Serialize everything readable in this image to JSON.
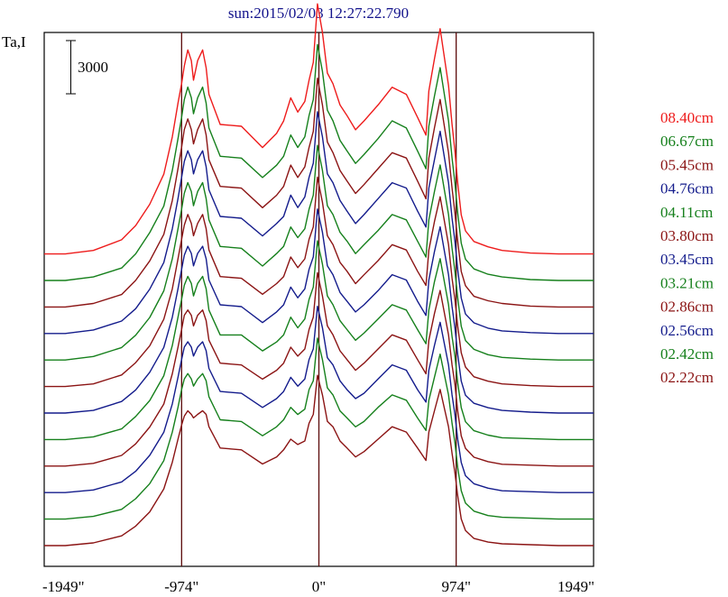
{
  "chart_data": {
    "type": "line",
    "title": "sun:2015/02/03 12:27:22.790",
    "ylabel": "Ta,I",
    "scale_bar_label": "3000",
    "x_ticks": [
      "-1949\"",
      "-974\"",
      "0\"",
      "974\"",
      "1949\""
    ],
    "xlim": [
      -1949,
      1949
    ],
    "vertical_lines": [
      -974,
      0,
      974
    ],
    "grid": false,
    "legend_placement": "right",
    "series_offset": 3000,
    "x": [
      -1949,
      -1800,
      -1600,
      -1400,
      -1300,
      -1200,
      -1100,
      -1040,
      -1000,
      -974,
      -955,
      -930,
      -905,
      -890,
      -860,
      -825,
      -800,
      -780,
      -700,
      -550,
      -400,
      -300,
      -250,
      -200,
      -150,
      -100,
      -70,
      -40,
      -10,
      25,
      60,
      100,
      150,
      200,
      260,
      320,
      420,
      520,
      620,
      700,
      760,
      780,
      820,
      860,
      920,
      945,
      965,
      985,
      1010,
      1040,
      1100,
      1200,
      1300,
      1500,
      1700,
      1949
    ],
    "series": [
      {
        "name": "08.40cm",
        "color": "#ee1c1c",
        "values": [
          0,
          0,
          200,
          800,
          1600,
          2800,
          4500,
          6600,
          8500,
          9600,
          10600,
          11500,
          10900,
          9800,
          10900,
          11500,
          10500,
          9000,
          7300,
          7200,
          6000,
          6800,
          7500,
          8800,
          8000,
          8600,
          9800,
          10800,
          14100,
          12500,
          10200,
          9600,
          8400,
          7800,
          7000,
          7500,
          8400,
          9400,
          9000,
          7700,
          6700,
          9200,
          11000,
          12700,
          9500,
          7300,
          5800,
          4000,
          2200,
          1300,
          700,
          400,
          200,
          50,
          0,
          0
        ]
      },
      {
        "name": "06.67cm",
        "color": "#16801c",
        "values": [
          0,
          0,
          200,
          700,
          1500,
          2700,
          4200,
          6200,
          8000,
          9200,
          10200,
          10900,
          10300,
          9400,
          10300,
          10900,
          10000,
          8600,
          7000,
          6900,
          5800,
          6500,
          7000,
          8200,
          7500,
          8100,
          9300,
          10200,
          13300,
          11800,
          9600,
          9000,
          7900,
          7300,
          6600,
          7100,
          8000,
          9000,
          8600,
          7300,
          6300,
          8700,
          10400,
          12000,
          9000,
          6900,
          5500,
          3800,
          2100,
          1200,
          650,
          350,
          200,
          50,
          0,
          0
        ]
      },
      {
        "name": "05.45cm",
        "color": "#8b1414",
        "values": [
          0,
          0,
          200,
          700,
          1500,
          2600,
          4100,
          6000,
          7800,
          9000,
          10000,
          10600,
          10000,
          9200,
          10000,
          10600,
          9700,
          8300,
          6800,
          6700,
          5600,
          6300,
          6800,
          8000,
          7300,
          7900,
          9000,
          9900,
          12900,
          11400,
          9300,
          8700,
          7700,
          7100,
          6400,
          6900,
          7800,
          8700,
          8400,
          7100,
          6100,
          8400,
          10100,
          11700,
          8700,
          6700,
          5300,
          3700,
          2000,
          1200,
          600,
          350,
          200,
          50,
          0,
          0
        ]
      },
      {
        "name": "04.76cm",
        "color": "#141c8c",
        "values": [
          0,
          0,
          200,
          700,
          1400,
          2500,
          4000,
          5900,
          7600,
          8800,
          9700,
          10300,
          9800,
          9000,
          9800,
          10300,
          9400,
          8100,
          6600,
          6500,
          5500,
          6200,
          6600,
          7800,
          7100,
          7700,
          8800,
          9600,
          12500,
          11100,
          9000,
          8500,
          7500,
          6900,
          6200,
          6700,
          7600,
          8500,
          8200,
          6900,
          6000,
          8200,
          9800,
          11400,
          8500,
          6500,
          5200,
          3600,
          2000,
          1100,
          600,
          300,
          150,
          50,
          0,
          0
        ]
      },
      {
        "name": "04.11cm",
        "color": "#16801c",
        "values": [
          0,
          0,
          200,
          700,
          1400,
          2400,
          3900,
          5700,
          7400,
          8500,
          9400,
          10000,
          9500,
          8700,
          9500,
          10000,
          9100,
          7900,
          6400,
          6300,
          5300,
          6000,
          6400,
          7500,
          6900,
          7400,
          8500,
          9300,
          12100,
          10700,
          8700,
          8200,
          7200,
          6700,
          6000,
          6500,
          7300,
          8200,
          7900,
          6700,
          5800,
          7900,
          9500,
          11000,
          8200,
          6300,
          5000,
          3500,
          1900,
          1100,
          600,
          300,
          150,
          50,
          0,
          0
        ]
      },
      {
        "name": "03.80cm",
        "color": "#8b1414",
        "values": [
          0,
          0,
          150,
          650,
          1350,
          2300,
          3800,
          5500,
          7200,
          8300,
          9100,
          9700,
          9200,
          8500,
          9200,
          9700,
          8900,
          7700,
          6200,
          6100,
          5200,
          5800,
          6200,
          7300,
          6700,
          7200,
          8300,
          9000,
          11800,
          10400,
          8500,
          8000,
          7000,
          6500,
          5800,
          6300,
          7100,
          8000,
          7700,
          6500,
          5700,
          7700,
          9300,
          10700,
          8000,
          6100,
          4900,
          3400,
          1900,
          1100,
          550,
          300,
          150,
          50,
          0,
          0
        ]
      },
      {
        "name": "03.45cm",
        "color": "#141c8c",
        "values": [
          0,
          0,
          150,
          650,
          1300,
          2300,
          3700,
          5400,
          7000,
          8100,
          8900,
          9400,
          9000,
          8300,
          9000,
          9400,
          8700,
          7500,
          6100,
          6000,
          5100,
          5700,
          6100,
          7100,
          6500,
          7000,
          8100,
          8800,
          11500,
          10200,
          8300,
          7800,
          6800,
          6300,
          5700,
          6100,
          6900,
          7800,
          7500,
          6300,
          5500,
          7500,
          9100,
          10500,
          7800,
          6000,
          4800,
          3300,
          1800,
          1000,
          550,
          300,
          150,
          50,
          0,
          0
        ]
      },
      {
        "name": "03.21cm",
        "color": "#16801c",
        "values": [
          0,
          0,
          150,
          600,
          1300,
          2200,
          3600,
          5300,
          6900,
          7900,
          8700,
          9200,
          8800,
          8100,
          8800,
          9200,
          8500,
          7300,
          5900,
          5900,
          5000,
          5500,
          5900,
          6900,
          6300,
          6800,
          7900,
          8600,
          11200,
          9900,
          8100,
          7600,
          6700,
          6200,
          5600,
          6000,
          6800,
          7600,
          7300,
          6200,
          5400,
          7300,
          8900,
          10200,
          7600,
          5800,
          4700,
          3200,
          1800,
          1000,
          500,
          250,
          100,
          50,
          0,
          0
        ]
      },
      {
        "name": "02.86cm",
        "color": "#8b1414",
        "values": [
          0,
          0,
          150,
          600,
          1250,
          2200,
          3500,
          5200,
          6700,
          7700,
          8500,
          8800,
          8500,
          7900,
          8500,
          8800,
          8200,
          7100,
          5800,
          5700,
          4900,
          5400,
          5800,
          6700,
          6200,
          6600,
          7700,
          8400,
          10900,
          9600,
          7900,
          7400,
          6500,
          6000,
          5400,
          5800,
          6600,
          7400,
          7100,
          6000,
          5200,
          7100,
          8600,
          9900,
          7400,
          5700,
          4600,
          3100,
          1700,
          1000,
          500,
          250,
          100,
          50,
          0,
          0
        ]
      },
      {
        "name": "02.56cm",
        "color": "#141c8c",
        "values": [
          0,
          0,
          150,
          600,
          1200,
          2100,
          3400,
          5000,
          6500,
          7500,
          8200,
          8500,
          8200,
          7700,
          8200,
          8500,
          8000,
          7000,
          5700,
          5600,
          4800,
          5300,
          5700,
          6500,
          6000,
          6400,
          7500,
          8100,
          10500,
          9300,
          7600,
          7200,
          6300,
          5800,
          5300,
          5600,
          6400,
          7200,
          6900,
          5800,
          5100,
          6900,
          8300,
          9600,
          7200,
          5500,
          4400,
          3000,
          1700,
          950,
          500,
          250,
          100,
          50,
          0,
          0
        ]
      },
      {
        "name": "02.42cm",
        "color": "#16801c",
        "values": [
          0,
          0,
          150,
          550,
          1150,
          2000,
          3300,
          4900,
          6300,
          7300,
          7900,
          8200,
          7900,
          7500,
          7900,
          8200,
          7800,
          6900,
          5600,
          5500,
          4700,
          5200,
          5600,
          6300,
          5900,
          6200,
          7300,
          7800,
          10200,
          9000,
          7400,
          7000,
          6100,
          5700,
          5200,
          5500,
          6300,
          7000,
          6700,
          5700,
          5000,
          6700,
          8000,
          9300,
          7000,
          5400,
          4300,
          2900,
          1600,
          900,
          450,
          200,
          100,
          50,
          0,
          0
        ]
      },
      {
        "name": "02.22cm",
        "color": "#8b1414",
        "values": [
          0,
          0,
          150,
          550,
          1100,
          1900,
          3200,
          4700,
          6000,
          6800,
          7300,
          7600,
          7400,
          7200,
          7400,
          7600,
          7400,
          6700,
          5500,
          5400,
          4600,
          5000,
          5400,
          6000,
          5700,
          5900,
          6900,
          7400,
          9600,
          8500,
          7000,
          6700,
          5900,
          5500,
          5000,
          5300,
          6000,
          6700,
          6400,
          5500,
          4800,
          6400,
          7600,
          8800,
          6700,
          5200,
          4100,
          2800,
          1500,
          850,
          400,
          200,
          100,
          50,
          0,
          0
        ]
      }
    ]
  },
  "colors": {
    "frame": "#000000",
    "marker_line": "#5a0a0a",
    "title_text": "#14148c"
  }
}
